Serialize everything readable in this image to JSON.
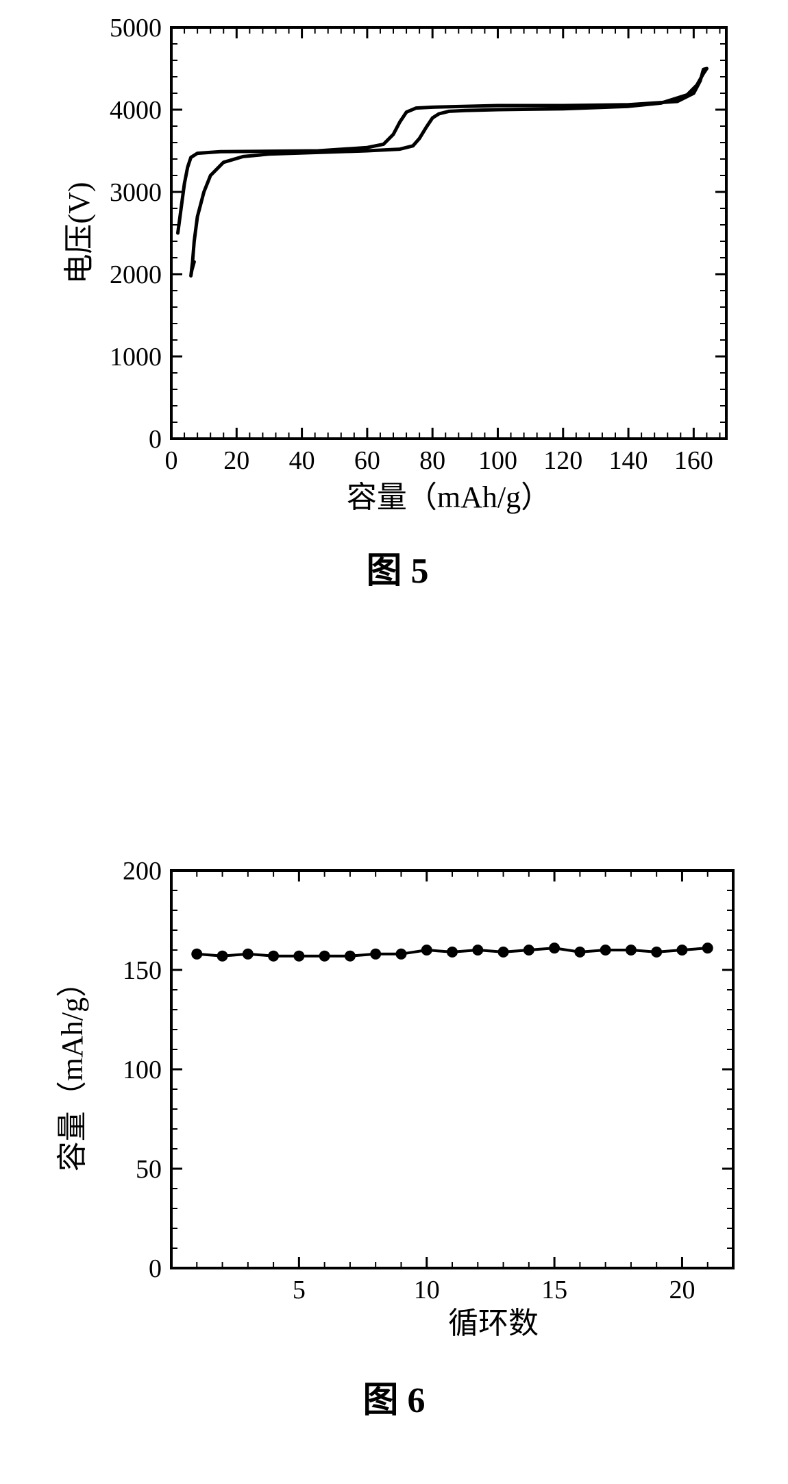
{
  "fig5": {
    "type": "line",
    "caption": "图 5",
    "xlabel": "容量（mAh/g）",
    "ylabel": "电压(V)",
    "xlim": [
      0,
      170
    ],
    "ylim": [
      0,
      5000
    ],
    "xtick_major_step": 20,
    "xtick_minor_step": 4,
    "ytick_major_step": 1000,
    "ytick_minor_step": 200,
    "xtick_labels": [
      "0",
      "20",
      "40",
      "60",
      "80",
      "100",
      "120",
      "140",
      "160"
    ],
    "ytick_labels": [
      "0",
      "1000",
      "2000",
      "3000",
      "4000",
      "5000"
    ],
    "background_color": "#ffffff",
    "line_color": "#000000",
    "line_width": 5,
    "label_fontsize": 44,
    "tick_fontsize": 38,
    "series": [
      {
        "name": "charge",
        "points": [
          [
            2,
            2500
          ],
          [
            3,
            2800
          ],
          [
            4,
            3100
          ],
          [
            5,
            3300
          ],
          [
            6,
            3420
          ],
          [
            8,
            3470
          ],
          [
            15,
            3490
          ],
          [
            30,
            3495
          ],
          [
            45,
            3500
          ],
          [
            60,
            3540
          ],
          [
            65,
            3580
          ],
          [
            68,
            3700
          ],
          [
            70,
            3850
          ],
          [
            72,
            3970
          ],
          [
            75,
            4020
          ],
          [
            80,
            4030
          ],
          [
            100,
            4050
          ],
          [
            120,
            4050
          ],
          [
            140,
            4060
          ],
          [
            155,
            4100
          ],
          [
            160,
            4200
          ],
          [
            162,
            4350
          ],
          [
            163,
            4490
          ],
          [
            164,
            4500
          ]
        ]
      },
      {
        "name": "discharge",
        "points": [
          [
            164,
            4500
          ],
          [
            163,
            4440
          ],
          [
            161,
            4300
          ],
          [
            158,
            4180
          ],
          [
            150,
            4080
          ],
          [
            140,
            4040
          ],
          [
            120,
            4010
          ],
          [
            100,
            4000
          ],
          [
            90,
            3990
          ],
          [
            85,
            3980
          ],
          [
            82,
            3950
          ],
          [
            80,
            3900
          ],
          [
            78,
            3780
          ],
          [
            76,
            3650
          ],
          [
            74,
            3560
          ],
          [
            70,
            3520
          ],
          [
            60,
            3500
          ],
          [
            45,
            3480
          ],
          [
            30,
            3460
          ],
          [
            22,
            3430
          ],
          [
            16,
            3360
          ],
          [
            12,
            3200
          ],
          [
            10,
            3000
          ],
          [
            8,
            2700
          ],
          [
            7,
            2400
          ],
          [
            6.5,
            2150
          ],
          [
            6,
            1980
          ],
          [
            6.3,
            2050
          ],
          [
            7,
            2150
          ]
        ]
      }
    ]
  },
  "fig6": {
    "type": "scatter-line",
    "caption": "图 6",
    "xlabel": "循环数",
    "ylabel": "容量（mAh/g）",
    "xlim": [
      0,
      22
    ],
    "ylim": [
      0,
      200
    ],
    "xtick_major_step": 5,
    "xtick_minor_step": 1,
    "ytick_major_step": 50,
    "ytick_minor_step": 10,
    "xtick_labels": [
      "5",
      "10",
      "15",
      "20"
    ],
    "xtick_label_positions": [
      5,
      10,
      15,
      20
    ],
    "ytick_labels": [
      "0",
      "50",
      "100",
      "150",
      "200"
    ],
    "background_color": "#ffffff",
    "marker_color": "#000000",
    "marker_radius": 8,
    "line_color": "#000000",
    "label_fontsize": 44,
    "tick_fontsize": 38,
    "data": [
      [
        1,
        158
      ],
      [
        2,
        157
      ],
      [
        3,
        158
      ],
      [
        4,
        157
      ],
      [
        5,
        157
      ],
      [
        6,
        157
      ],
      [
        7,
        157
      ],
      [
        8,
        158
      ],
      [
        9,
        158
      ],
      [
        10,
        160
      ],
      [
        11,
        159
      ],
      [
        12,
        160
      ],
      [
        13,
        159
      ],
      [
        14,
        160
      ],
      [
        15,
        161
      ],
      [
        16,
        159
      ],
      [
        17,
        160
      ],
      [
        18,
        160
      ],
      [
        19,
        159
      ],
      [
        20,
        160
      ],
      [
        21,
        161
      ]
    ]
  }
}
